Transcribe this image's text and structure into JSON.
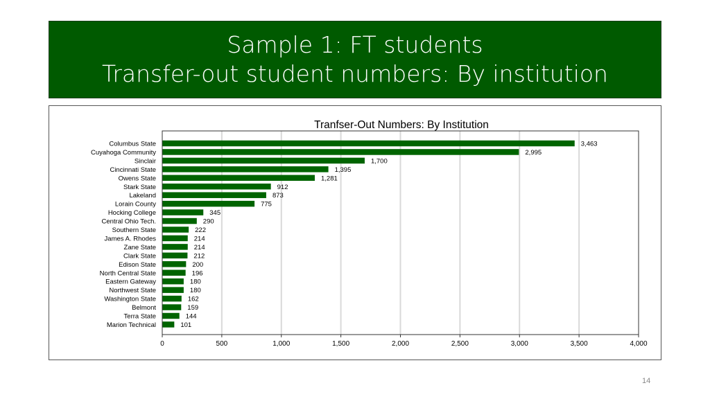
{
  "slide": {
    "title_line1": "Sample 1: FT students",
    "title_line2": "Transfer-out student numbers: By institution",
    "page_number": "14"
  },
  "colors": {
    "banner": "#005a00",
    "bar": "#006400",
    "grid": "#d9d9d9"
  },
  "chart_data": {
    "type": "bar",
    "orientation": "horizontal",
    "title": "Tranfser-Out Numbers: By Institution",
    "categories": [
      "Columbus State",
      "Cuyahoga Community",
      "Sinclair",
      "Cincinnati State",
      "Owens State",
      "Stark State",
      "Lakeland",
      "Lorain County",
      "Hocking College",
      "Central Ohio Tech.",
      "Southern State",
      "James A. Rhodes",
      "Zane State",
      "Clark State",
      "Edison State",
      "North Central State",
      "Eastern Gateway",
      "Northwest State",
      "Washington State",
      "Belmont",
      "Terra State",
      "Marion Technical"
    ],
    "values": [
      3463,
      2995,
      1700,
      1395,
      1281,
      912,
      873,
      775,
      345,
      290,
      222,
      214,
      214,
      212,
      200,
      196,
      180,
      180,
      162,
      159,
      144,
      101
    ],
    "value_labels": [
      "3,463",
      "2,995",
      "1,700",
      "1,395",
      "1,281",
      "912",
      "873",
      "775",
      "345",
      "290",
      "222",
      "214",
      "214",
      "212",
      "200",
      "196",
      "180",
      "180",
      "162",
      "159",
      "144",
      "101"
    ],
    "xlim": [
      0,
      4000
    ],
    "xticks": [
      0,
      500,
      1000,
      1500,
      2000,
      2500,
      3000,
      3500,
      4000
    ],
    "xtick_labels": [
      "0",
      "500",
      "1,000",
      "1,500",
      "2,000",
      "2,500",
      "3,000",
      "3,500",
      "4,000"
    ],
    "grid": true,
    "legend": "none"
  }
}
